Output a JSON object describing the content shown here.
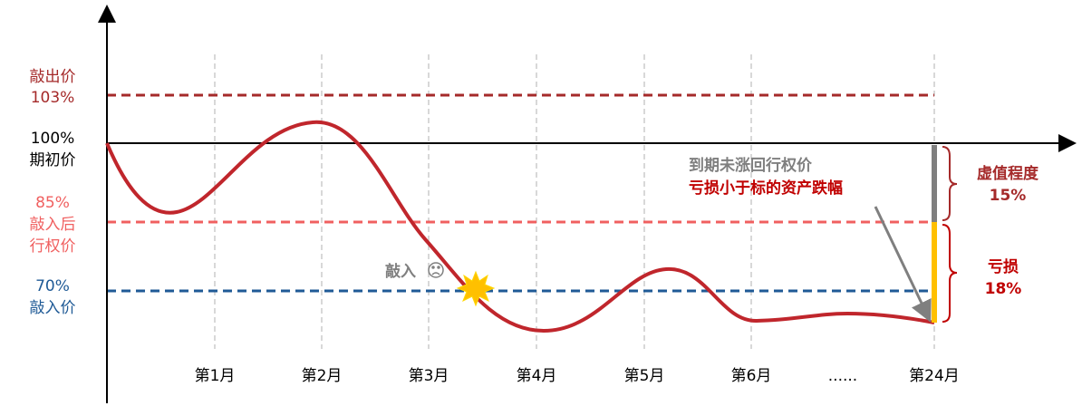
{
  "levels": {
    "knock_out": {
      "name": "敲出价",
      "value": "103%"
    },
    "initial": {
      "value": "100%",
      "name": "期初价"
    },
    "strike": {
      "value": "85%",
      "name_1": "敲入后",
      "name_2": "行权价"
    },
    "knock_in": {
      "value": "70%",
      "name": "敲入价"
    }
  },
  "event": "敲入",
  "note": {
    "line_1": "到期未涨回行权价",
    "line_2": "亏损小于标的资产跌幅"
  },
  "brace_top": {
    "label": "虚值程度",
    "value": "15%"
  },
  "brace_bottom": {
    "label": "亏损",
    "value": "18%"
  },
  "months": [
    "第1月",
    "第2月",
    "第3月",
    "第4月",
    "第5月",
    "第6月",
    "......",
    "第24月"
  ]
}
